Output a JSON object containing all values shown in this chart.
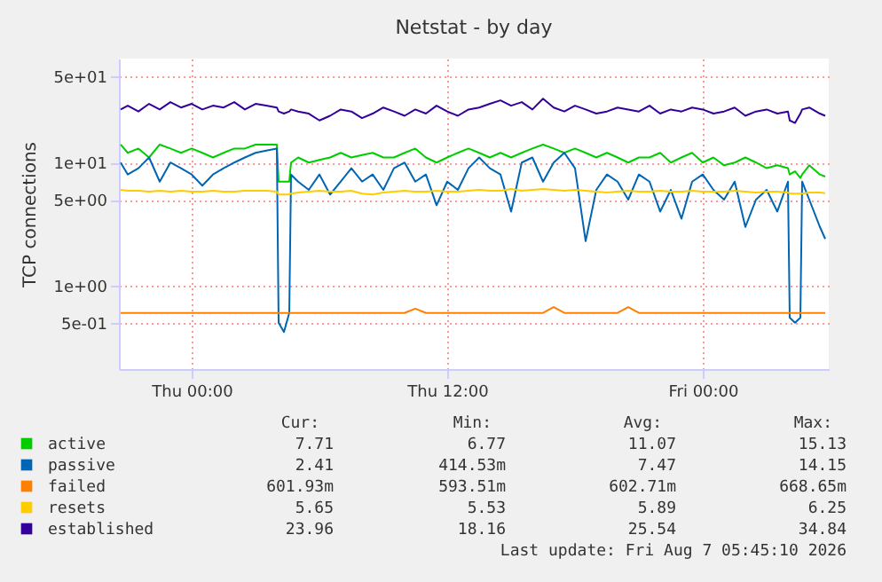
{
  "chart_data": {
    "type": "line",
    "title": "Netstat - by day",
    "ylabel": "TCP connections",
    "x": [
      "2026-08-05T20:40",
      "2026-08-05T21:00",
      "2026-08-05T21:30",
      "2026-08-05T22:00",
      "2026-08-05T22:30",
      "2026-08-05T23:00",
      "2026-08-05T23:30",
      "2026-08-06T00:00",
      "2026-08-06T00:30",
      "2026-08-06T01:00",
      "2026-08-06T01:30",
      "2026-08-06T02:00",
      "2026-08-06T02:30",
      "2026-08-06T03:00",
      "2026-08-06T03:30",
      "2026-08-06T04:00",
      "2026-08-06T04:05",
      "2026-08-06T04:20",
      "2026-08-06T04:35",
      "2026-08-06T04:40",
      "2026-08-06T05:00",
      "2026-08-06T05:30",
      "2026-08-06T06:00",
      "2026-08-06T06:30",
      "2026-08-06T07:00",
      "2026-08-06T07:30",
      "2026-08-06T08:00",
      "2026-08-06T08:30",
      "2026-08-06T09:00",
      "2026-08-06T09:30",
      "2026-08-06T10:00",
      "2026-08-06T10:30",
      "2026-08-06T11:00",
      "2026-08-06T11:30",
      "2026-08-06T12:00",
      "2026-08-06T12:30",
      "2026-08-06T13:00",
      "2026-08-06T13:30",
      "2026-08-06T14:00",
      "2026-08-06T14:30",
      "2026-08-06T15:00",
      "2026-08-06T15:30",
      "2026-08-06T16:00",
      "2026-08-06T16:30",
      "2026-08-06T17:00",
      "2026-08-06T17:30",
      "2026-08-06T18:00",
      "2026-08-06T18:30",
      "2026-08-06T19:00",
      "2026-08-06T19:30",
      "2026-08-06T20:00",
      "2026-08-06T20:30",
      "2026-08-06T21:00",
      "2026-08-06T21:30",
      "2026-08-06T22:00",
      "2026-08-06T22:30",
      "2026-08-06T23:00",
      "2026-08-06T23:30",
      "2026-08-07T00:00",
      "2026-08-07T00:30",
      "2026-08-07T01:00",
      "2026-08-07T01:30",
      "2026-08-07T02:00",
      "2026-08-07T02:30",
      "2026-08-07T03:00",
      "2026-08-07T03:30",
      "2026-08-07T04:00",
      "2026-08-07T04:05",
      "2026-08-07T04:20",
      "2026-08-07T04:35",
      "2026-08-07T04:40",
      "2026-08-07T05:00",
      "2026-08-07T05:30",
      "2026-08-07T05:45"
    ],
    "series": [
      {
        "name": "active",
        "color": "#00cc00",
        "values": [
          14,
          12,
          13,
          11,
          14,
          13,
          12,
          13,
          12,
          11,
          12,
          13,
          13,
          14,
          14,
          14,
          7,
          7,
          7,
          10,
          11,
          10,
          10.5,
          11,
          12,
          11,
          11.5,
          12,
          11,
          11,
          12,
          13,
          11,
          10,
          11,
          12,
          13,
          12,
          11,
          12,
          11,
          12,
          13,
          14,
          13,
          12,
          13,
          12,
          11,
          12,
          11,
          10,
          11,
          11,
          12,
          10,
          11,
          12,
          10,
          11,
          9.5,
          10,
          11,
          10,
          9,
          9.5,
          9,
          8,
          8.5,
          7.5,
          8,
          9.5,
          8,
          7.7
        ]
      },
      {
        "name": "passive",
        "color": "#0066b3",
        "values": [
          10,
          8,
          9,
          11,
          7,
          10,
          9,
          8,
          6.5,
          8,
          9,
          10,
          11,
          12,
          12.5,
          13,
          0.5,
          0.42,
          0.6,
          8,
          7,
          6,
          8,
          5.5,
          7,
          9,
          7,
          8,
          6,
          9,
          10,
          7,
          8,
          4.5,
          7,
          6,
          9,
          11,
          9,
          8,
          4,
          10,
          11,
          7,
          10,
          12,
          9,
          2.3,
          6,
          8,
          7,
          5,
          8,
          7,
          4,
          6,
          3.5,
          7,
          8,
          6,
          5,
          7,
          3,
          5,
          6,
          4,
          7,
          0.55,
          0.5,
          0.55,
          7,
          5,
          3,
          2.4
        ]
      },
      {
        "name": "failed",
        "color": "#ff8000",
        "values": [
          0.6,
          0.6,
          0.6,
          0.6,
          0.6,
          0.6,
          0.6,
          0.6,
          0.6,
          0.6,
          0.6,
          0.6,
          0.6,
          0.6,
          0.6,
          0.6,
          0.6,
          0.6,
          0.6,
          0.6,
          0.6,
          0.6,
          0.6,
          0.6,
          0.6,
          0.6,
          0.6,
          0.6,
          0.6,
          0.6,
          0.6,
          0.65,
          0.6,
          0.6,
          0.6,
          0.6,
          0.6,
          0.6,
          0.6,
          0.6,
          0.6,
          0.6,
          0.6,
          0.6,
          0.67,
          0.6,
          0.6,
          0.6,
          0.6,
          0.6,
          0.6,
          0.67,
          0.6,
          0.6,
          0.6,
          0.6,
          0.6,
          0.6,
          0.6,
          0.6,
          0.6,
          0.6,
          0.6,
          0.6,
          0.6,
          0.6,
          0.6,
          0.6,
          0.6,
          0.6,
          0.6,
          0.6,
          0.6,
          0.6
        ]
      },
      {
        "name": "resets",
        "color": "#ffcc00",
        "values": [
          6,
          5.9,
          5.9,
          5.8,
          5.9,
          5.8,
          5.9,
          5.8,
          5.8,
          5.9,
          5.8,
          5.8,
          5.9,
          5.9,
          5.9,
          5.8,
          5.5,
          5.5,
          5.5,
          5.6,
          5.7,
          5.8,
          5.9,
          5.8,
          5.8,
          5.9,
          5.6,
          5.5,
          5.7,
          5.8,
          5.9,
          5.8,
          5.8,
          5.9,
          5.8,
          5.8,
          5.9,
          6,
          5.9,
          5.9,
          6.1,
          5.9,
          6,
          6.1,
          6,
          5.9,
          6,
          5.9,
          5.8,
          5.7,
          5.8,
          5.9,
          5.8,
          5.8,
          5.9,
          5.8,
          5.8,
          5.9,
          5.8,
          5.8,
          5.8,
          5.9,
          5.8,
          5.7,
          5.8,
          5.8,
          5.7,
          5.6,
          5.6,
          5.6,
          5.6,
          5.7,
          5.7,
          5.65
        ]
      },
      {
        "name": "established",
        "color": "#330099",
        "values": [
          27,
          29,
          26,
          30,
          27,
          31,
          28,
          30,
          27,
          29,
          28,
          31,
          27,
          30,
          29,
          28,
          26,
          25,
          26,
          27,
          26,
          25,
          22,
          24,
          27,
          26,
          23,
          25,
          28,
          26,
          24,
          27,
          25,
          29,
          26,
          24,
          27,
          28,
          30,
          32,
          29,
          31,
          27,
          33,
          28,
          26,
          29,
          27,
          25,
          26,
          28,
          27,
          26,
          29,
          25,
          27,
          26,
          28,
          27,
          25,
          26,
          28,
          24,
          26,
          27,
          25,
          26,
          22,
          21,
          25,
          27,
          28,
          25,
          24
        ]
      }
    ],
    "xlim": [
      "2026-08-05T20:35",
      "2026-08-07T05:55"
    ],
    "xticks": [
      {
        "value": "2026-08-06T00:00",
        "label": "Thu 00:00"
      },
      {
        "value": "2026-08-06T12:00",
        "label": "Thu 12:00"
      },
      {
        "value": "2026-08-07T00:00",
        "label": "Fri 00:00"
      }
    ],
    "ylim": [
      0.21,
      70
    ],
    "log": true,
    "yticks": [
      {
        "value": 0.5,
        "label": "5e-01"
      },
      {
        "value": 1,
        "label": "1e+00"
      },
      {
        "value": 5,
        "label": "5e+00"
      },
      {
        "value": 10,
        "label": "1e+01"
      },
      {
        "value": 50,
        "label": "5e+01"
      }
    ],
    "grid": true,
    "legend": "bottom",
    "line_style": "solid",
    "marker": "none",
    "annotations": [
      "Cur:",
      "Min:",
      "Avg:",
      "Max:",
      "7.71",
      "6.77",
      "11.07",
      "15.13",
      "2.41",
      "414.53m",
      "7.47",
      "14.15",
      "601.93m",
      "593.51m",
      "602.71m",
      "668.65m",
      "5.65",
      "5.53",
      "5.89",
      "6.25",
      "23.96",
      "18.16",
      "25.54",
      "34.84",
      "Last update: Fri Aug  7 05:45:10 2026"
    ]
  }
}
